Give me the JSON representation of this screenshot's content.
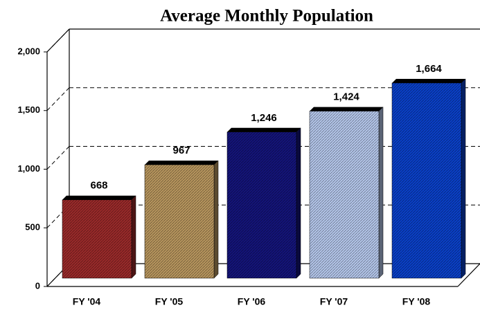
{
  "chart_data": {
    "type": "bar",
    "title": "Average Monthly Population",
    "categories": [
      "FY '04",
      "FY '05",
      "FY '06",
      "FY '07",
      "FY '08"
    ],
    "values": [
      668,
      967,
      1246,
      1424,
      1664
    ],
    "value_labels": [
      "668",
      "967",
      "1,246",
      "1,424",
      "1,664"
    ],
    "colors": [
      "#9a2a2a",
      "#b8965e",
      "#14147a",
      "#b4c6ea",
      "#0a40c8"
    ],
    "ylim": [
      0,
      2000
    ],
    "yticks": [
      0,
      500,
      {
        "value": 1000,
        "label": "1,000"
      },
      {
        "value": 1500,
        "label": "1,500"
      },
      {
        "value": 2000,
        "label": "2,000"
      }
    ],
    "grid": true
  }
}
